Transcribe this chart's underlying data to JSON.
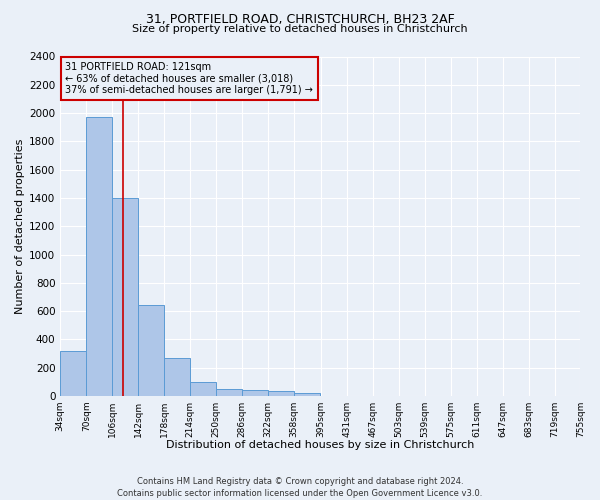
{
  "title_line1": "31, PORTFIELD ROAD, CHRISTCHURCH, BH23 2AF",
  "title_line2": "Size of property relative to detached houses in Christchurch",
  "xlabel": "Distribution of detached houses by size in Christchurch",
  "ylabel": "Number of detached properties",
  "footnote": "Contains HM Land Registry data © Crown copyright and database right 2024.\nContains public sector information licensed under the Open Government Licence v3.0.",
  "annotation_title": "31 PORTFIELD ROAD: 121sqm",
  "annotation_line1": "← 63% of detached houses are smaller (3,018)",
  "annotation_line2": "37% of semi-detached houses are larger (1,791) →",
  "property_size": 121,
  "bin_edges": [
    34,
    70,
    106,
    142,
    178,
    214,
    250,
    286,
    322,
    358,
    395,
    431,
    467,
    503,
    539,
    575,
    611,
    647,
    683,
    719,
    755
  ],
  "bar_heights": [
    320,
    1970,
    1400,
    645,
    270,
    100,
    48,
    43,
    35,
    22,
    0,
    0,
    0,
    0,
    0,
    0,
    0,
    0,
    0,
    0
  ],
  "bar_color": "#aec6e8",
  "bar_edge_color": "#5b9bd5",
  "vline_color": "#cc0000",
  "vline_x": 121,
  "annotation_box_color": "#cc0000",
  "background_color": "#eaf0f8",
  "grid_color": "#ffffff",
  "ylim": [
    0,
    2400
  ],
  "yticks": [
    0,
    200,
    400,
    600,
    800,
    1000,
    1200,
    1400,
    1600,
    1800,
    2000,
    2200,
    2400
  ],
  "title1_fontsize": 9,
  "title2_fontsize": 8,
  "ylabel_fontsize": 8,
  "xlabel_fontsize": 8,
  "ytick_fontsize": 7.5,
  "xtick_fontsize": 6.5,
  "annotation_fontsize": 7,
  "footnote_fontsize": 6
}
